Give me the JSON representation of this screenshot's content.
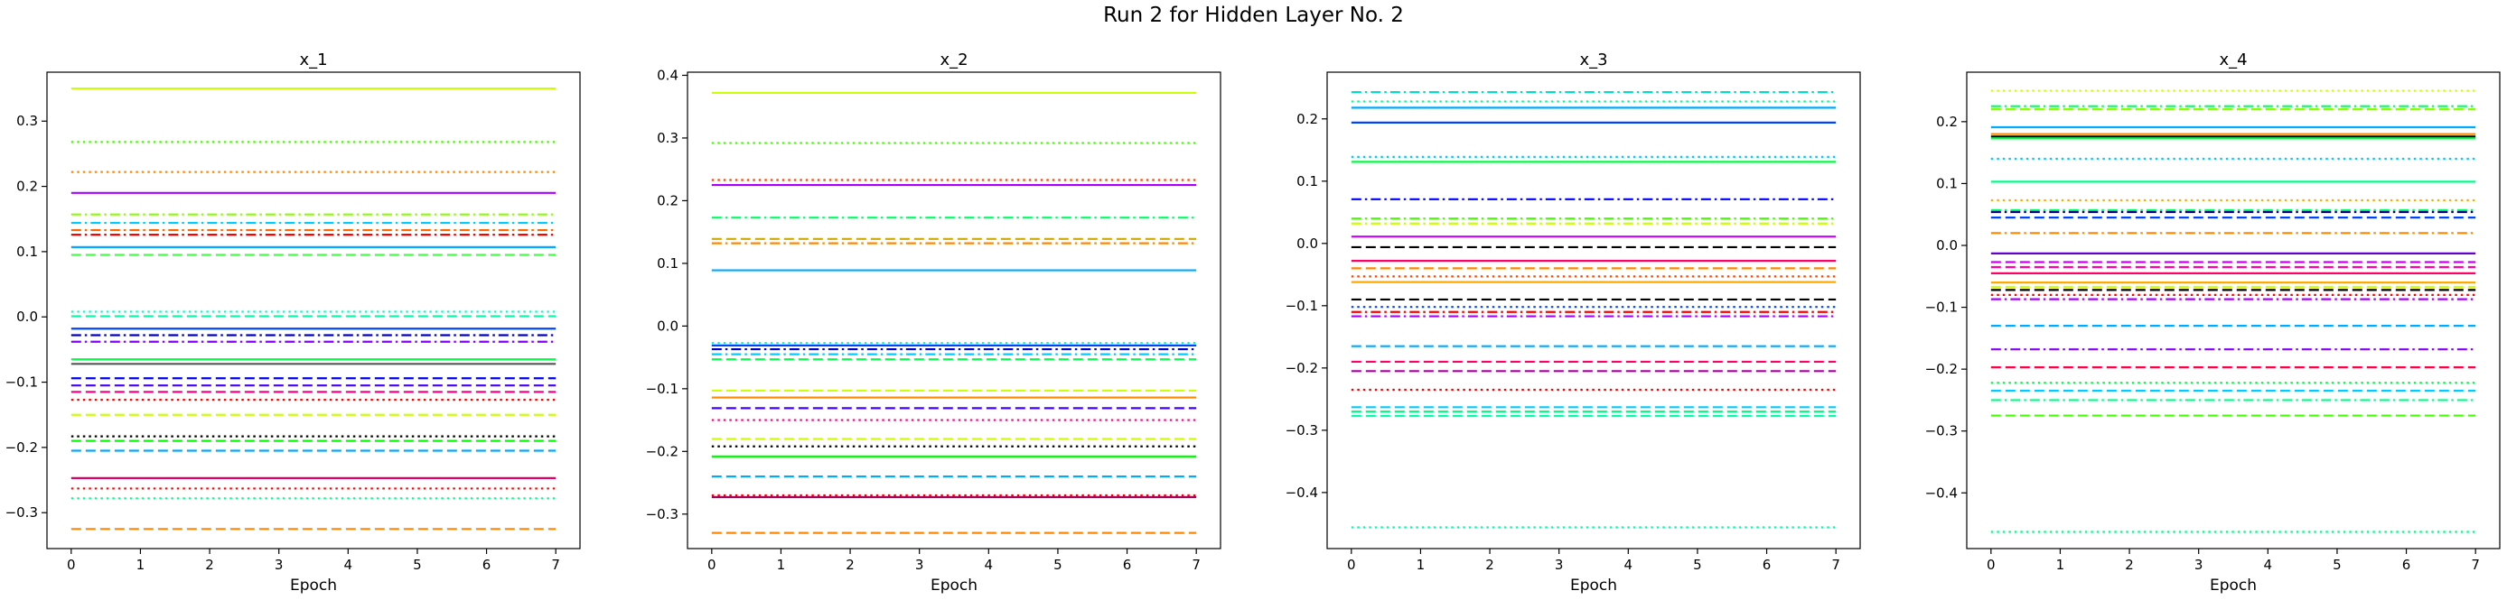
{
  "figure": {
    "title": "Run 2 for Hidden Layer No. 2"
  },
  "chart_data": [
    {
      "type": "line",
      "title": "x_1",
      "xlabel": "Epoch",
      "ylabel": "",
      "x": [
        0,
        1,
        2,
        3,
        4,
        5,
        6,
        7
      ],
      "xlim": [
        -0.35,
        7.35
      ],
      "ylim": [
        -0.355,
        0.375
      ],
      "xticks": [
        "0",
        "1",
        "2",
        "3",
        "4",
        "5",
        "6",
        "7"
      ],
      "yticks": [
        0.3,
        0.2,
        0.1,
        0.0,
        -0.1,
        -0.2,
        -0.3
      ],
      "ytick_labels": [
        "0.3",
        "0.2",
        "0.1",
        "0.0",
        "−0.1",
        "−0.2",
        "−0.3"
      ],
      "grid": false,
      "series": [
        {
          "value": 0.35,
          "color": "#ccff00",
          "dash": "solid"
        },
        {
          "value": 0.268,
          "color": "#44ff00",
          "dash": "dotted"
        },
        {
          "value": 0.222,
          "color": "#ff8800",
          "dash": "dotted"
        },
        {
          "value": 0.19,
          "color": "#aa00ff",
          "dash": "solid"
        },
        {
          "value": 0.157,
          "color": "#88ff00",
          "dash": "dashdot"
        },
        {
          "value": 0.144,
          "color": "#00ccff",
          "dash": "dashdot"
        },
        {
          "value": 0.133,
          "color": "#ff6600",
          "dash": "dashdot"
        },
        {
          "value": 0.126,
          "color": "#ff0000",
          "dash": "dashdot"
        },
        {
          "value": 0.107,
          "color": "#00aaff",
          "dash": "solid"
        },
        {
          "value": 0.095,
          "color": "#44ff44",
          "dash": "dashed"
        },
        {
          "value": 0.008,
          "color": "#00ffcc",
          "dash": "dotted"
        },
        {
          "value": 0.001,
          "color": "#00ffaa",
          "dash": "dashed"
        },
        {
          "value": -0.018,
          "color": "#0044ff",
          "dash": "solid"
        },
        {
          "value": -0.028,
          "color": "#0000cc",
          "dash": "dashdot"
        },
        {
          "value": -0.038,
          "color": "#8800ff",
          "dash": "dashdot"
        },
        {
          "value": -0.065,
          "color": "#00ff44",
          "dash": "solid"
        },
        {
          "value": -0.072,
          "color": "#555555",
          "dash": "solid"
        },
        {
          "value": -0.094,
          "color": "#0000ff",
          "dash": "dashed"
        },
        {
          "value": -0.105,
          "color": "#4400ff",
          "dash": "dashed"
        },
        {
          "value": -0.115,
          "color": "#ff0088",
          "dash": "dashed"
        },
        {
          "value": -0.127,
          "color": "#ff0000",
          "dash": "dotted"
        },
        {
          "value": -0.15,
          "color": "#ccff00",
          "dash": "dashed"
        },
        {
          "value": -0.183,
          "color": "#000000",
          "dash": "dotted"
        },
        {
          "value": -0.19,
          "color": "#00ff00",
          "dash": "dashed"
        },
        {
          "value": -0.205,
          "color": "#00aaff",
          "dash": "dashed"
        },
        {
          "value": -0.247,
          "color": "#dd0066",
          "dash": "solid"
        },
        {
          "value": -0.263,
          "color": "#ff0000",
          "dash": "dotted"
        },
        {
          "value": -0.278,
          "color": "#00ff88",
          "dash": "dotted"
        },
        {
          "value": -0.325,
          "color": "#ff8800",
          "dash": "dashed"
        }
      ]
    },
    {
      "type": "line",
      "title": "x_2",
      "xlabel": "Epoch",
      "ylabel": "",
      "x": [
        0,
        1,
        2,
        3,
        4,
        5,
        6,
        7
      ],
      "xlim": [
        -0.35,
        7.35
      ],
      "ylim": [
        -0.355,
        0.405
      ],
      "xticks": [
        "0",
        "1",
        "2",
        "3",
        "4",
        "5",
        "6",
        "7"
      ],
      "yticks": [
        0.4,
        0.3,
        0.2,
        0.1,
        0.0,
        -0.1,
        -0.2,
        -0.3
      ],
      "ytick_labels": [
        "0.4",
        "0.3",
        "0.2",
        "0.1",
        "0.0",
        "−0.1",
        "−0.2",
        "−0.3"
      ],
      "grid": false,
      "series": [
        {
          "value": 0.372,
          "color": "#ccff00",
          "dash": "solid"
        },
        {
          "value": 0.292,
          "color": "#44ff00",
          "dash": "dotted"
        },
        {
          "value": 0.233,
          "color": "#ff4400",
          "dash": "dotted"
        },
        {
          "value": 0.225,
          "color": "#aa00ff",
          "dash": "solid"
        },
        {
          "value": 0.173,
          "color": "#00ff66",
          "dash": "dashdot"
        },
        {
          "value": 0.139,
          "color": "#ccaa00",
          "dash": "dashed"
        },
        {
          "value": 0.132,
          "color": "#ff8800",
          "dash": "dashdot"
        },
        {
          "value": 0.089,
          "color": "#00aaff",
          "dash": "solid"
        },
        {
          "value": -0.027,
          "color": "#00ffcc",
          "dash": "dotted"
        },
        {
          "value": -0.031,
          "color": "#0044ff",
          "dash": "solid"
        },
        {
          "value": -0.037,
          "color": "#0000cc",
          "dash": "dashdot"
        },
        {
          "value": -0.045,
          "color": "#00ccff",
          "dash": "dashdot"
        },
        {
          "value": -0.053,
          "color": "#00ff44",
          "dash": "dashed"
        },
        {
          "value": -0.103,
          "color": "#ccff00",
          "dash": "dashed"
        },
        {
          "value": -0.114,
          "color": "#ff8800",
          "dash": "solid"
        },
        {
          "value": -0.131,
          "color": "#4400ff",
          "dash": "dashed"
        },
        {
          "value": -0.15,
          "color": "#ff0088",
          "dash": "dotted"
        },
        {
          "value": -0.18,
          "color": "#ccff00",
          "dash": "dashed"
        },
        {
          "value": -0.192,
          "color": "#000000",
          "dash": "dotted"
        },
        {
          "value": -0.208,
          "color": "#00ff00",
          "dash": "solid"
        },
        {
          "value": -0.24,
          "color": "#00aaff",
          "dash": "dashed"
        },
        {
          "value": -0.27,
          "color": "#ff0000",
          "dash": "dotted"
        },
        {
          "value": -0.273,
          "color": "#aa0055",
          "dash": "solid"
        },
        {
          "value": -0.33,
          "color": "#ff8800",
          "dash": "dashed"
        }
      ]
    },
    {
      "type": "line",
      "title": "x_3",
      "xlabel": "Epoch",
      "ylabel": "",
      "x": [
        0,
        1,
        2,
        3,
        4,
        5,
        6,
        7
      ],
      "xlim": [
        -0.35,
        7.35
      ],
      "ylim": [
        -0.49,
        0.275
      ],
      "xticks": [
        "0",
        "1",
        "2",
        "3",
        "4",
        "5",
        "6",
        "7"
      ],
      "yticks": [
        0.2,
        0.1,
        0.0,
        -0.1,
        -0.2,
        -0.3,
        -0.4
      ],
      "ytick_labels": [
        "0.2",
        "0.1",
        "0.0",
        "−0.1",
        "−0.2",
        "−0.3",
        "−0.4"
      ],
      "grid": false,
      "series": [
        {
          "value": 0.243,
          "color": "#00ddcc",
          "dash": "dashdot"
        },
        {
          "value": 0.228,
          "color": "#00ff88",
          "dash": "dotted"
        },
        {
          "value": 0.218,
          "color": "#00aaff",
          "dash": "solid"
        },
        {
          "value": 0.194,
          "color": "#0044ff",
          "dash": "solid"
        },
        {
          "value": 0.139,
          "color": "#00ccff",
          "dash": "dotted"
        },
        {
          "value": 0.131,
          "color": "#00ff44",
          "dash": "solid"
        },
        {
          "value": 0.071,
          "color": "#0000ff",
          "dash": "dashdot"
        },
        {
          "value": 0.04,
          "color": "#44ff00",
          "dash": "dashdot"
        },
        {
          "value": 0.032,
          "color": "#ccff00",
          "dash": "dashdot"
        },
        {
          "value": 0.011,
          "color": "#cc00ff",
          "dash": "solid"
        },
        {
          "value": -0.006,
          "color": "#000000",
          "dash": "dashed"
        },
        {
          "value": -0.028,
          "color": "#ff0066",
          "dash": "solid"
        },
        {
          "value": -0.04,
          "color": "#ff8800",
          "dash": "dashed"
        },
        {
          "value": -0.053,
          "color": "#ff4400",
          "dash": "dotted"
        },
        {
          "value": -0.062,
          "color": "#ffaa00",
          "dash": "solid"
        },
        {
          "value": -0.09,
          "color": "#000000",
          "dash": "dashed"
        },
        {
          "value": -0.102,
          "color": "#0044ff",
          "dash": "dotted"
        },
        {
          "value": -0.11,
          "color": "#ff0000",
          "dash": "dashdot"
        },
        {
          "value": -0.117,
          "color": "#aa00ff",
          "dash": "dashdot"
        },
        {
          "value": -0.165,
          "color": "#00aaff",
          "dash": "dashed"
        },
        {
          "value": -0.19,
          "color": "#ff0066",
          "dash": "dashed"
        },
        {
          "value": -0.205,
          "color": "#aa00aa",
          "dash": "dashed"
        },
        {
          "value": -0.235,
          "color": "#ff0000",
          "dash": "dotted"
        },
        {
          "value": -0.263,
          "color": "#00ccff",
          "dash": "dashed"
        },
        {
          "value": -0.27,
          "color": "#00ff88",
          "dash": "dashed"
        },
        {
          "value": -0.277,
          "color": "#00ffaa",
          "dash": "dashed"
        },
        {
          "value": -0.456,
          "color": "#00ffaa",
          "dash": "dotted"
        }
      ]
    },
    {
      "type": "line",
      "title": "x_4",
      "xlabel": "Epoch",
      "ylabel": "",
      "x": [
        0,
        1,
        2,
        3,
        4,
        5,
        6,
        7
      ],
      "xlim": [
        -0.35,
        7.35
      ],
      "ylim": [
        -0.49,
        0.28
      ],
      "xticks": [
        "0",
        "1",
        "2",
        "3",
        "4",
        "5",
        "6",
        "7"
      ],
      "yticks": [
        0.2,
        0.1,
        0.0,
        -0.1,
        -0.2,
        -0.3,
        -0.4
      ],
      "ytick_labels": [
        "0.2",
        "0.1",
        "0.0",
        "−0.1",
        "−0.2",
        "−0.3",
        "−0.4"
      ],
      "grid": false,
      "series": [
        {
          "value": 0.25,
          "color": "#ccff00",
          "dash": "dotted"
        },
        {
          "value": 0.225,
          "color": "#00ff66",
          "dash": "dashdot"
        },
        {
          "value": 0.22,
          "color": "#88ff00",
          "dash": "dashed"
        },
        {
          "value": 0.191,
          "color": "#00aaff",
          "dash": "solid"
        },
        {
          "value": 0.18,
          "color": "#ff8800",
          "dash": "solid"
        },
        {
          "value": 0.176,
          "color": "#000000",
          "dash": "solid"
        },
        {
          "value": 0.173,
          "color": "#00ff44",
          "dash": "solid"
        },
        {
          "value": 0.14,
          "color": "#00ccff",
          "dash": "dotted"
        },
        {
          "value": 0.103,
          "color": "#00ff88",
          "dash": "solid"
        },
        {
          "value": 0.073,
          "color": "#ffaa00",
          "dash": "dotted"
        },
        {
          "value": 0.057,
          "color": "#00ff66",
          "dash": "dashdot"
        },
        {
          "value": 0.054,
          "color": "#000088",
          "dash": "dashdot"
        },
        {
          "value": 0.045,
          "color": "#0044ff",
          "dash": "dashed"
        },
        {
          "value": 0.02,
          "color": "#ff8800",
          "dash": "dashdot"
        },
        {
          "value": -0.013,
          "color": "#6600cc",
          "dash": "solid"
        },
        {
          "value": -0.027,
          "color": "#cc00ff",
          "dash": "dashed"
        },
        {
          "value": -0.035,
          "color": "#ff00aa",
          "dash": "dashed"
        },
        {
          "value": -0.045,
          "color": "#ff0066",
          "dash": "solid"
        },
        {
          "value": -0.06,
          "color": "#ffaa00",
          "dash": "solid"
        },
        {
          "value": -0.067,
          "color": "#ccff00",
          "dash": "dashed"
        },
        {
          "value": -0.072,
          "color": "#000000",
          "dash": "dashed"
        },
        {
          "value": -0.08,
          "color": "#ff0000",
          "dash": "dotted"
        },
        {
          "value": -0.087,
          "color": "#aa00ff",
          "dash": "dashdot"
        },
        {
          "value": -0.13,
          "color": "#00aaff",
          "dash": "dashed"
        },
        {
          "value": -0.168,
          "color": "#8800ff",
          "dash": "dashdot"
        },
        {
          "value": -0.197,
          "color": "#ff0044",
          "dash": "dashed"
        },
        {
          "value": -0.222,
          "color": "#00ff44",
          "dash": "dotted"
        },
        {
          "value": -0.235,
          "color": "#00ccff",
          "dash": "dashed"
        },
        {
          "value": -0.25,
          "color": "#00ff88",
          "dash": "dashdot"
        },
        {
          "value": -0.275,
          "color": "#44ff00",
          "dash": "dashed"
        },
        {
          "value": -0.463,
          "color": "#00ff88",
          "dash": "dotted"
        }
      ]
    }
  ]
}
